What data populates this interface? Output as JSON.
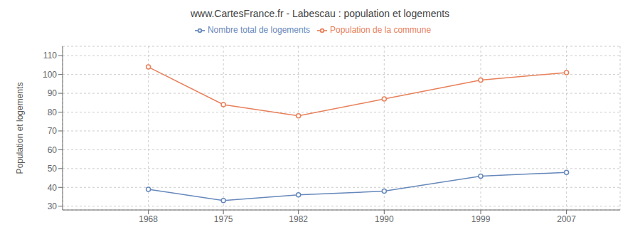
{
  "chart_data": {
    "type": "line",
    "title": "www.CartesFrance.fr - Labescau : population et logements",
    "ylabel": "Population et logements",
    "x": [
      1968,
      1975,
      1982,
      1990,
      1999,
      2007
    ],
    "series": [
      {
        "name": "Nombre total de logements",
        "color": "#6688bb",
        "values": [
          39,
          33,
          36,
          38,
          46,
          48
        ]
      },
      {
        "name": "Population de la commune",
        "color": "#e8805a",
        "values": [
          104,
          84,
          78,
          87,
          97,
          101
        ]
      }
    ],
    "xlim": [
      1960,
      2012
    ],
    "xticks": [
      1968,
      1975,
      1982,
      1990,
      1999,
      2007
    ],
    "ylim": [
      28,
      115
    ],
    "yticks": [
      30,
      40,
      50,
      60,
      70,
      80,
      90,
      100,
      110
    ],
    "grid": true,
    "legend": "top",
    "marker": "circle"
  }
}
